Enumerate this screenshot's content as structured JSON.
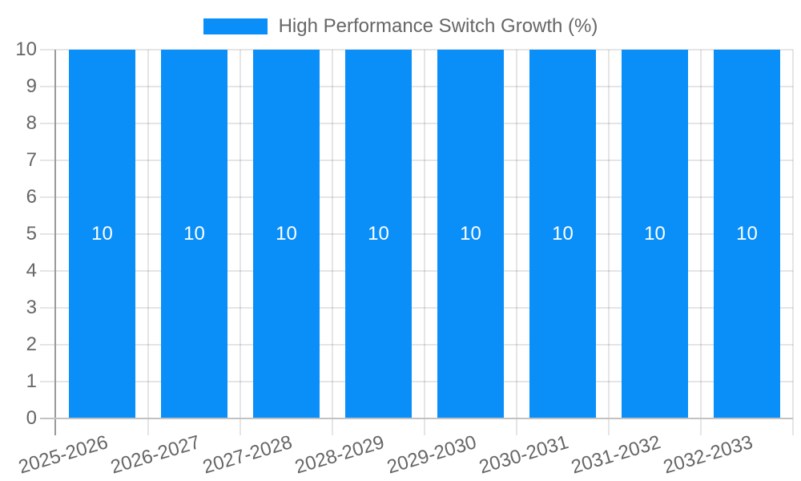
{
  "chart_data": {
    "type": "bar",
    "categories": [
      "2025-2026",
      "2026-2027",
      "2027-2028",
      "2028-2029",
      "2029-2030",
      "2030-2031",
      "2031-2032",
      "2032-2033"
    ],
    "series": [
      {
        "name": "High Performance Switch Growth (%)",
        "values": [
          10,
          10,
          10,
          10,
          10,
          10,
          10,
          10
        ],
        "color": "#0a8ff9"
      }
    ],
    "bar_value_labels": [
      "10",
      "10",
      "10",
      "10",
      "10",
      "10",
      "10",
      "10"
    ],
    "y_tick_labels": [
      "0",
      "1",
      "2",
      "3",
      "4",
      "5",
      "6",
      "7",
      "8",
      "9",
      "10"
    ],
    "ylim": [
      0,
      10
    ],
    "xlabel": "",
    "ylabel": "",
    "title": "",
    "legend_position": "top-center",
    "grid": "on",
    "x_label_rotation_deg": -16.5,
    "colors": {
      "bar": "#0a8ff9",
      "bar_label_text": "#ffffff",
      "axis_text": "#666666",
      "gridline": "rgba(0,0,0,0.10)",
      "y_axis_line": "#9a9a9a",
      "x_axis_line": "#c2c2c2",
      "background": "#ffffff"
    }
  }
}
